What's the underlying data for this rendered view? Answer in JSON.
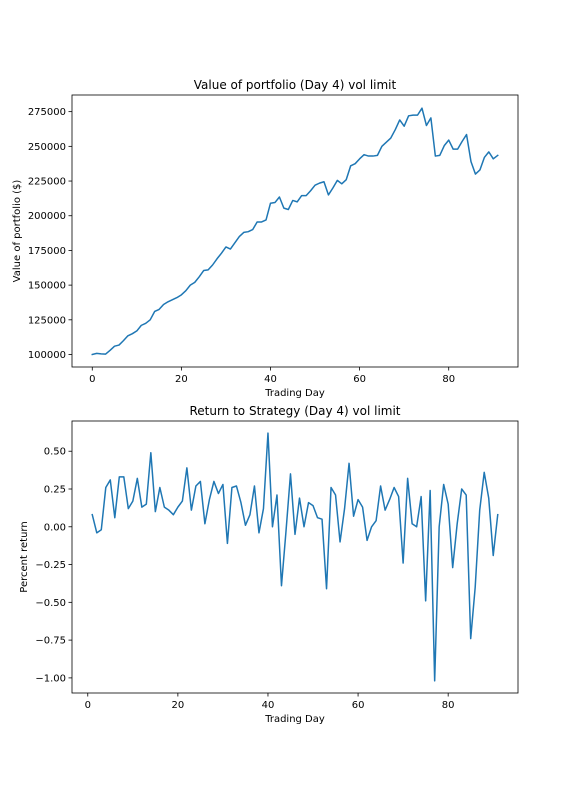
{
  "chart_data": [
    {
      "type": "line",
      "title": "Value of portfolio (Day 4) vol limit",
      "xlabel": "Trading Day",
      "ylabel": "Value of portfolio ($)",
      "xlim": [
        -4.55,
        95.55
      ],
      "ylim": [
        91000,
        287000
      ],
      "xticks": [
        0,
        20,
        40,
        60,
        80
      ],
      "xtick_labels": [
        "0",
        "20",
        "40",
        "60",
        "80"
      ],
      "yticks": [
        100000,
        125000,
        150000,
        175000,
        200000,
        225000,
        250000,
        275000
      ],
      "ytick_labels": [
        "100000",
        "125000",
        "150000",
        "175000",
        "200000",
        "225000",
        "250000",
        "275000"
      ],
      "grid": false,
      "color": "#1f77b4",
      "x": [
        0,
        1,
        2,
        3,
        4,
        5,
        6,
        7,
        8,
        9,
        10,
        11,
        12,
        13,
        14,
        15,
        16,
        17,
        18,
        19,
        20,
        21,
        22,
        23,
        24,
        25,
        26,
        27,
        28,
        29,
        30,
        31,
        32,
        33,
        34,
        35,
        36,
        37,
        38,
        39,
        40,
        41,
        42,
        43,
        44,
        45,
        46,
        47,
        48,
        49,
        50,
        51,
        52,
        53,
        54,
        55,
        56,
        57,
        58,
        59,
        60,
        61,
        62,
        63,
        64,
        65,
        66,
        67,
        68,
        69,
        70,
        71,
        72,
        73,
        74,
        75,
        76,
        77,
        78,
        79,
        80,
        81,
        82,
        83,
        84,
        85,
        86,
        87,
        88,
        89,
        90,
        91
      ],
      "y": [
        100000,
        100800,
        100500,
        100300,
        103000,
        106000,
        106800,
        110000,
        113500,
        115000,
        117000,
        121000,
        122500,
        125000,
        131000,
        132500,
        136000,
        138000,
        139500,
        141000,
        143000,
        146000,
        150000,
        152000,
        156000,
        160500,
        161000,
        164500,
        169000,
        173000,
        177500,
        176000,
        180500,
        185000,
        188000,
        188500,
        190000,
        195500,
        195500,
        197000,
        209000,
        209500,
        213500,
        205500,
        204500,
        211000,
        210000,
        214500,
        214500,
        218000,
        222000,
        223500,
        224500,
        215000,
        220000,
        225500,
        223000,
        226000,
        236000,
        237500,
        241000,
        244000,
        243000,
        243000,
        243500,
        250000,
        253000,
        256000,
        262000,
        269000,
        264500,
        272000,
        272500,
        272500,
        277500,
        265000,
        270500,
        243000,
        243500,
        250500,
        254500,
        248000,
        248000,
        253500,
        258500,
        239000,
        230000,
        233000,
        242000,
        246000,
        241000,
        243500
      ]
    },
    {
      "type": "line",
      "title": "Return to Strategy (Day 4) vol limit",
      "xlabel": "Trading Day",
      "ylabel": "Percent return",
      "xlim": [
        -3.5,
        95.5
      ],
      "ylim": [
        -1.1,
        0.7
      ],
      "xticks": [
        0,
        20,
        40,
        60,
        80
      ],
      "xtick_labels": [
        "0",
        "20",
        "40",
        "60",
        "80"
      ],
      "yticks": [
        -1.0,
        -0.75,
        -0.5,
        -0.25,
        0.0,
        0.25,
        0.5
      ],
      "ytick_labels": [
        "−1.00",
        "−0.75",
        "−0.50",
        "−0.25",
        "0.00",
        "0.25",
        "0.50"
      ],
      "grid": false,
      "color": "#1f77b4",
      "x": [
        1,
        2,
        3,
        4,
        5,
        6,
        7,
        8,
        9,
        10,
        11,
        12,
        13,
        14,
        15,
        16,
        17,
        18,
        19,
        20,
        21,
        22,
        23,
        24,
        25,
        26,
        27,
        28,
        29,
        30,
        31,
        32,
        33,
        34,
        35,
        36,
        37,
        38,
        39,
        40,
        41,
        42,
        43,
        44,
        45,
        46,
        47,
        48,
        49,
        50,
        51,
        52,
        53,
        54,
        55,
        56,
        57,
        58,
        59,
        60,
        61,
        62,
        63,
        64,
        65,
        66,
        67,
        68,
        69,
        70,
        71,
        72,
        73,
        74,
        75,
        76,
        77,
        78,
        79,
        80,
        81,
        82,
        83,
        84,
        85,
        86,
        87,
        88,
        89,
        90,
        91
      ],
      "y": [
        0.08,
        -0.04,
        -0.02,
        0.26,
        0.31,
        0.06,
        0.33,
        0.33,
        0.12,
        0.17,
        0.32,
        0.13,
        0.15,
        0.49,
        0.1,
        0.26,
        0.13,
        0.11,
        0.08,
        0.13,
        0.17,
        0.39,
        0.11,
        0.27,
        0.3,
        0.02,
        0.18,
        0.3,
        0.22,
        0.28,
        -0.11,
        0.26,
        0.27,
        0.16,
        0.01,
        0.08,
        0.27,
        -0.04,
        0.12,
        0.62,
        0.0,
        0.21,
        -0.39,
        -0.03,
        0.35,
        -0.05,
        0.19,
        0.0,
        0.16,
        0.14,
        0.06,
        0.05,
        -0.41,
        0.26,
        0.21,
        -0.1,
        0.12,
        0.42,
        0.07,
        0.18,
        0.13,
        -0.09,
        0.0,
        0.04,
        0.27,
        0.11,
        0.18,
        0.26,
        0.2,
        -0.24,
        0.32,
        0.02,
        0.0,
        0.2,
        -0.49,
        0.24,
        -1.02,
        0.0,
        0.28,
        0.15,
        -0.27,
        0.02,
        0.25,
        0.21,
        -0.74,
        -0.4,
        0.11,
        0.36,
        0.19,
        -0.19,
        0.08
      ]
    }
  ]
}
